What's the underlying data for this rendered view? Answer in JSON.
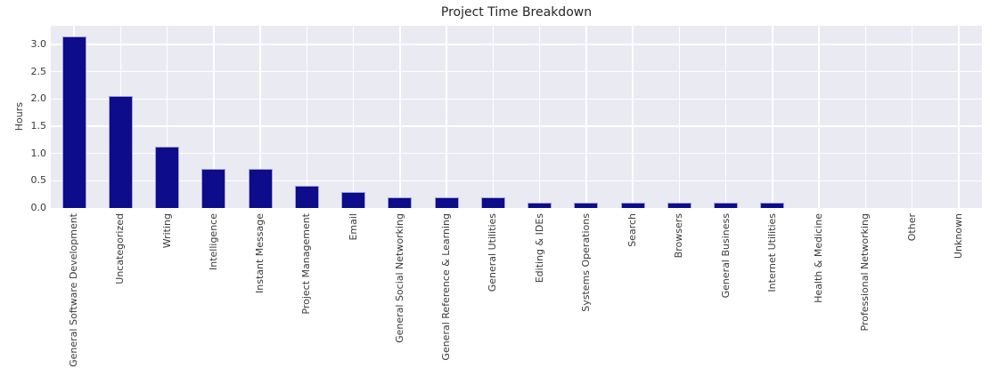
{
  "figure": {
    "background": "#ffffff",
    "plot_background": "#eaeaf2",
    "grid_color": "#ffffff",
    "bar_color": "#0d0c8b",
    "bar_edge_color": "#a3a2d6",
    "text_color": "#262626"
  },
  "chart_data": {
    "type": "bar",
    "title": "Project Time Breakdown",
    "xlabel": "",
    "ylabel": "Hours",
    "categories": [
      "General Software Development",
      "Uncategorized",
      "Writing",
      "Intelligence",
      "Instant Message",
      "Project Management",
      "Email",
      "General Social Networking",
      "General Reference & Learning",
      "General Utilities",
      "Editing & IDEs",
      "Systems Operations",
      "Search",
      "Browsers",
      "General Business",
      "Internet Utilities",
      "Health & Medicine",
      "Professional Networking",
      "Other",
      "Unknown"
    ],
    "values": [
      3.15,
      2.05,
      1.12,
      0.72,
      0.72,
      0.4,
      0.29,
      0.2,
      0.2,
      0.2,
      0.1,
      0.1,
      0.1,
      0.1,
      0.1,
      0.1,
      0,
      0,
      0,
      0
    ],
    "yticks": [
      0.0,
      0.5,
      1.0,
      1.5,
      2.0,
      2.5,
      3.0
    ],
    "ytick_labels": [
      "0.0",
      "0.5",
      "1.0",
      "1.5",
      "2.0",
      "2.5",
      "3.0"
    ],
    "ylim": [
      0,
      3.34
    ],
    "grid": true,
    "legend": null
  }
}
